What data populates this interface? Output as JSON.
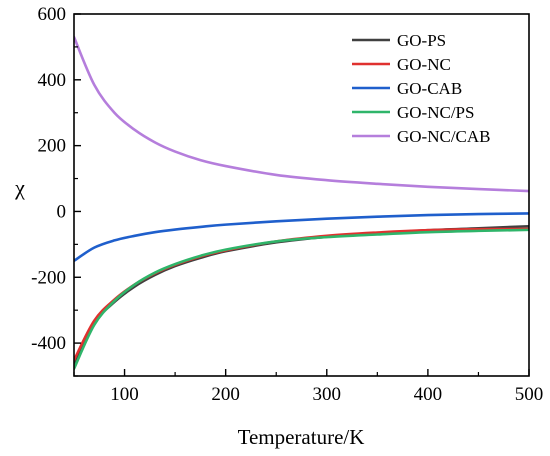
{
  "chart_data": {
    "type": "line",
    "title": "",
    "xlabel": "Temperature/K",
    "ylabel": "χ",
    "xlim": [
      50,
      500
    ],
    "ylim": [
      -500,
      600
    ],
    "xticks": [
      100,
      200,
      300,
      400,
      500
    ],
    "yticks": [
      -400,
      -200,
      0,
      200,
      400,
      600
    ],
    "xtick_labels": [
      "100",
      "200",
      "300",
      "400",
      "500"
    ],
    "ytick_labels": [
      "-400",
      "-200",
      "0",
      "200",
      "400",
      "600"
    ],
    "grid": false,
    "legend_position": "top-right",
    "x": [
      50,
      70,
      90,
      110,
      130,
      150,
      175,
      200,
      250,
      300,
      350,
      400,
      450,
      500
    ],
    "series": [
      {
        "name": "GO-PS",
        "color": "#404040",
        "values": [
          -465,
          -340,
          -275,
          -228,
          -193,
          -166,
          -141,
          -121,
          -94,
          -77,
          -66,
          -57,
          -51,
          -45
        ]
      },
      {
        "name": "GO-NC",
        "color": "#e0312f",
        "values": [
          -452,
          -332,
          -268,
          -222,
          -188,
          -162,
          -137,
          -118,
          -91,
          -74,
          -64,
          -57,
          -54,
          -53
        ]
      },
      {
        "name": "GO-CAB",
        "color": "#1f5fcc",
        "values": [
          -150,
          -110,
          -88,
          -74,
          -63,
          -55,
          -47,
          -40,
          -30,
          -22,
          -16,
          -11,
          -8,
          -6
        ]
      },
      {
        "name": "GO-NC/PS",
        "color": "#2fb56a",
        "values": [
          -478,
          -345,
          -272,
          -222,
          -186,
          -160,
          -135,
          -116,
          -91,
          -78,
          -70,
          -63,
          -59,
          -56
        ]
      },
      {
        "name": "GO-NC/CAB",
        "color": "#b57edc",
        "values": [
          530,
          385,
          300,
          248,
          210,
          182,
          156,
          138,
          111,
          95,
          84,
          75,
          68,
          62
        ]
      }
    ]
  }
}
